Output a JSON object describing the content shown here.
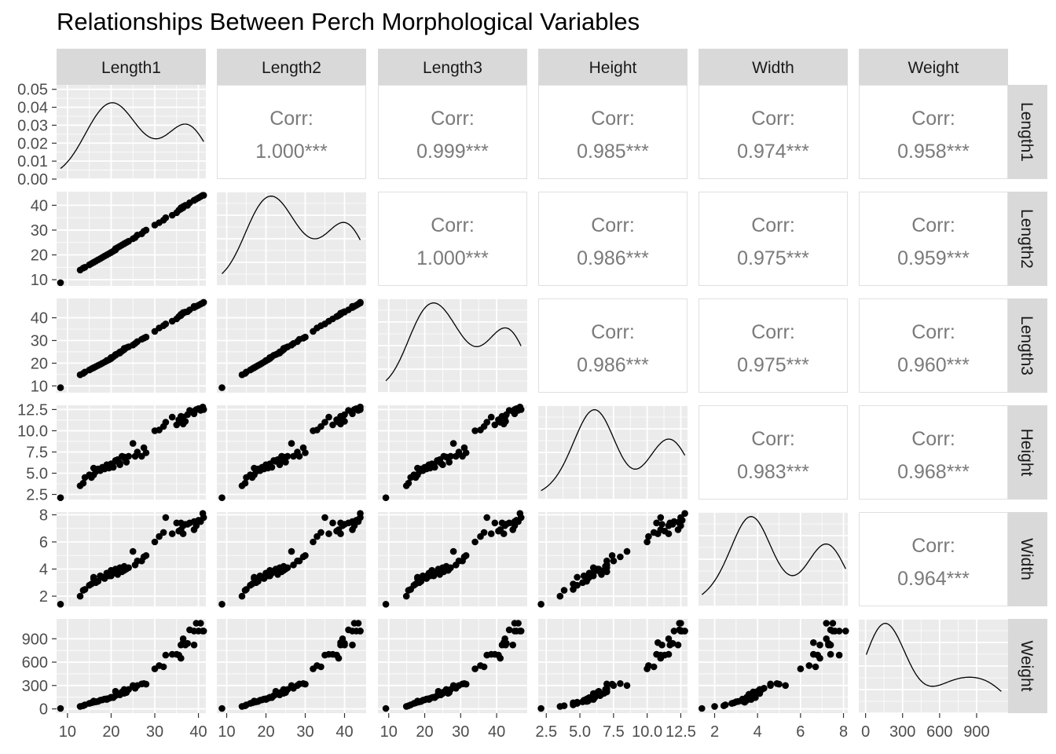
{
  "chart_data": {
    "type": "scatter",
    "title": "Relationships Between Perch Morphological Variables",
    "variables": [
      "Length1",
      "Length2",
      "Length3",
      "Height",
      "Width",
      "Weight"
    ],
    "correlation_label": "Corr:",
    "correlations": [
      {
        "row": "Length1",
        "col": "Length2",
        "value": "1.000***"
      },
      {
        "row": "Length1",
        "col": "Length3",
        "value": "0.999***"
      },
      {
        "row": "Length1",
        "col": "Height",
        "value": "0.985***"
      },
      {
        "row": "Length1",
        "col": "Width",
        "value": "0.974***"
      },
      {
        "row": "Length1",
        "col": "Weight",
        "value": "0.958***"
      },
      {
        "row": "Length2",
        "col": "Length3",
        "value": "1.000***"
      },
      {
        "row": "Length2",
        "col": "Height",
        "value": "0.986***"
      },
      {
        "row": "Length2",
        "col": "Width",
        "value": "0.975***"
      },
      {
        "row": "Length2",
        "col": "Weight",
        "value": "0.959***"
      },
      {
        "row": "Length3",
        "col": "Height",
        "value": "0.986***"
      },
      {
        "row": "Length3",
        "col": "Width",
        "value": "0.975***"
      },
      {
        "row": "Length3",
        "col": "Weight",
        "value": "0.960***"
      },
      {
        "row": "Height",
        "col": "Width",
        "value": "0.983***"
      },
      {
        "row": "Height",
        "col": "Weight",
        "value": "0.968***"
      },
      {
        "row": "Width",
        "col": "Weight",
        "value": "0.964***"
      }
    ],
    "axes": {
      "Length1": {
        "range": [
          7.5,
          41.7
        ],
        "ticks": [
          10,
          20,
          30,
          40
        ]
      },
      "Length2": {
        "range": [
          7.5,
          45.5
        ],
        "ticks": [
          10,
          20,
          30,
          40
        ]
      },
      "Length3": {
        "range": [
          7.0,
          48.5
        ],
        "ticks": [
          10,
          20,
          30,
          40
        ]
      },
      "Height": {
        "range": [
          1.9,
          13.0
        ],
        "ticks": [
          2.5,
          5.0,
          7.5,
          10.0,
          12.5
        ],
        "tick_labels": [
          "2.5",
          "5.0",
          "7.5",
          "10.0",
          "12.5"
        ]
      },
      "Width": {
        "range": [
          1.25,
          8.2
        ],
        "ticks": [
          2,
          4,
          6,
          8
        ]
      },
      "Weight": {
        "range": [
          -55,
          1155
        ],
        "ticks": [
          0,
          300,
          600,
          900
        ]
      }
    },
    "diagonal_density_axis": {
      "range": [
        0,
        0.0525
      ],
      "ticks": [
        0.0,
        0.01,
        0.02,
        0.03,
        0.04,
        0.05
      ],
      "tick_labels": [
        "0.00",
        "0.01",
        "0.02",
        "0.03",
        "0.04",
        "0.05"
      ]
    },
    "observations": [
      [
        8.4,
        8.8,
        9.2,
        2.112,
        1.408,
        5.9
      ],
      [
        12.9,
        13.9,
        14.9,
        3.523,
        1.999,
        32.0
      ],
      [
        13.6,
        14.7,
        15.5,
        3.825,
        2.432,
        40.0
      ],
      [
        14.0,
        15.0,
        16.1,
        4.5,
        2.5,
        51.5
      ],
      [
        15.0,
        16.0,
        17.0,
        4.8,
        2.8,
        70.0
      ],
      [
        15.5,
        16.5,
        17.5,
        4.5,
        2.9,
        78.0
      ],
      [
        16.0,
        17.0,
        18.0,
        4.8,
        3.4,
        85.0
      ],
      [
        16.0,
        17.0,
        18.0,
        5.6,
        3.3,
        100.0
      ],
      [
        16.5,
        17.5,
        18.5,
        5.2,
        3.0,
        90.0
      ],
      [
        17.0,
        18.0,
        19.0,
        5.5,
        3.1,
        95.0
      ],
      [
        17.5,
        18.5,
        19.5,
        5.3,
        3.5,
        110.0
      ],
      [
        18.0,
        19.0,
        20.0,
        5.7,
        3.4,
        115.0
      ],
      [
        18.5,
        19.5,
        20.5,
        5.5,
        3.3,
        125.0
      ],
      [
        19.0,
        20.0,
        21.0,
        5.9,
        3.6,
        130.0
      ],
      [
        19.0,
        20.0,
        21.2,
        6.0,
        3.7,
        120.0
      ],
      [
        19.5,
        20.5,
        21.5,
        5.6,
        3.5,
        135.0
      ],
      [
        20.0,
        21.0,
        22.0,
        6.1,
        3.9,
        145.0
      ],
      [
        20.0,
        21.0,
        22.5,
        6.0,
        3.5,
        150.0
      ],
      [
        20.5,
        21.5,
        22.8,
        5.7,
        3.7,
        145.0
      ],
      [
        21.0,
        22.0,
        23.5,
        6.5,
        3.8,
        170.0
      ],
      [
        21.0,
        22.5,
        23.8,
        6.4,
        4.0,
        225.0
      ],
      [
        21.5,
        23.0,
        24.2,
        6.6,
        3.6,
        188.0
      ],
      [
        22.0,
        23.5,
        24.5,
        6.2,
        3.9,
        180.0
      ],
      [
        22.0,
        23.5,
        25.0,
        6.0,
        4.1,
        197.0
      ],
      [
        22.5,
        24.0,
        25.3,
        7.0,
        3.8,
        218.0
      ],
      [
        23.0,
        24.5,
        26.0,
        6.9,
        4.2,
        250.0
      ],
      [
        23.0,
        24.5,
        26.5,
        6.8,
        3.9,
        200.0
      ],
      [
        23.5,
        25.0,
        26.8,
        6.3,
        4.0,
        210.0
      ],
      [
        24.0,
        25.5,
        27.2,
        7.0,
        4.1,
        250.0
      ],
      [
        25.0,
        26.5,
        28.0,
        8.5,
        5.3,
        300.0
      ],
      [
        25.5,
        27.0,
        28.7,
        7.0,
        4.3,
        265.0
      ],
      [
        26.0,
        28.0,
        29.5,
        7.5,
        4.6,
        300.0
      ],
      [
        27.0,
        28.5,
        30.5,
        7.0,
        4.6,
        320.0
      ],
      [
        27.5,
        29.5,
        31.0,
        8.0,
        4.9,
        325.0
      ],
      [
        28.0,
        30.0,
        31.5,
        7.4,
        5.0,
        317.0
      ],
      [
        30.0,
        32.0,
        34.0,
        10.0,
        6.0,
        514.0
      ],
      [
        31.0,
        33.0,
        35.5,
        10.1,
        6.4,
        556.0
      ],
      [
        32.0,
        34.0,
        36.5,
        10.5,
        6.7,
        540.0
      ],
      [
        32.5,
        35.0,
        37.3,
        11.0,
        7.8,
        690.0
      ],
      [
        34.0,
        36.0,
        38.5,
        11.6,
        6.6,
        700.0
      ],
      [
        35.0,
        37.0,
        39.5,
        10.7,
        7.4,
        700.0
      ],
      [
        35.5,
        38.0,
        40.5,
        11.3,
        6.8,
        690.0
      ],
      [
        36.0,
        38.5,
        41.0,
        11.0,
        6.9,
        650.0
      ],
      [
        36.0,
        39.0,
        41.5,
        11.7,
        7.4,
        820.0
      ],
      [
        36.5,
        39.0,
        42.0,
        10.8,
        6.6,
        850.0
      ],
      [
        36.5,
        39.5,
        42.3,
        11.6,
        7.2,
        900.0
      ],
      [
        37.0,
        40.0,
        42.5,
        11.1,
        7.3,
        820.0
      ],
      [
        38.0,
        41.0,
        43.5,
        12.4,
        7.4,
        1015.0
      ],
      [
        39.0,
        42.0,
        44.5,
        12.3,
        6.9,
        820.0
      ],
      [
        39.5,
        42.5,
        45.0,
        12.5,
        7.2,
        1100.0
      ],
      [
        40.0,
        43.0,
        45.5,
        12.6,
        7.6,
        1000.0
      ],
      [
        40.5,
        43.5,
        46.0,
        12.4,
        7.5,
        1100.0
      ],
      [
        41.0,
        44.0,
        46.5,
        12.8,
        8.1,
        1000.0
      ],
      [
        41.2,
        44.0,
        46.8,
        12.5,
        7.8,
        1000.0
      ],
      [
        39.0,
        42.0,
        45.0,
        12.0,
        7.5,
        1000.0
      ],
      [
        37.5,
        40.0,
        42.7,
        11.9,
        7.3,
        840.0
      ]
    ],
    "xlabel": "",
    "ylabel": "",
    "grid": true
  }
}
